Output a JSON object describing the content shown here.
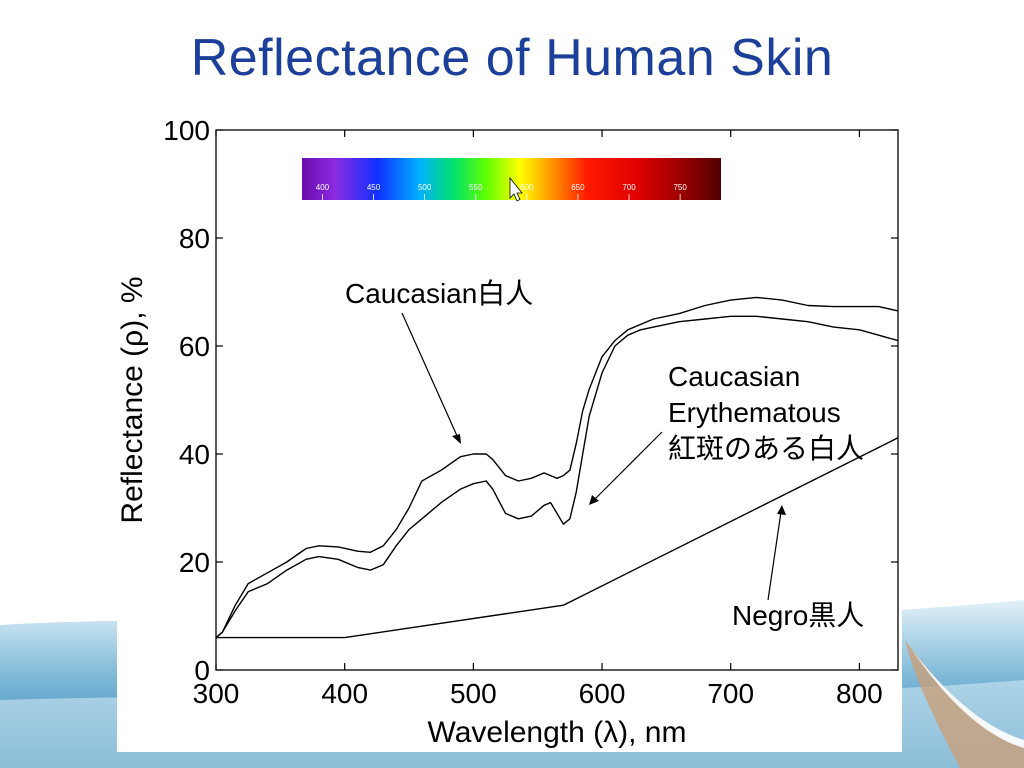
{
  "slide": {
    "title": "Reflectance of Human Skin",
    "colors": {
      "title": "#1c3f9a",
      "wave_dark": "#2a7fb0",
      "wave_light": "#bfe0ef",
      "corner_accent": "#c8a07a"
    }
  },
  "spectrum_bar": {
    "labels": [
      "400",
      "450",
      "500",
      "550",
      "600",
      "650",
      "700",
      "750"
    ],
    "cursor_icon": "mouse-pointer-icon"
  },
  "chart_data": {
    "type": "line",
    "title": "",
    "xlabel": "Wavelength (λ), nm",
    "ylabel": "Reflectance (ρ), %",
    "xlim": [
      300,
      830
    ],
    "ylim": [
      0,
      100
    ],
    "xticks": [
      300,
      400,
      500,
      600,
      700,
      800
    ],
    "yticks": [
      0,
      20,
      40,
      60,
      80,
      100
    ],
    "grid": false,
    "legend": "none",
    "series": [
      {
        "x": [
          300,
          305,
          315,
          325,
          340,
          355,
          370,
          380,
          395,
          410,
          420,
          430,
          440,
          450,
          460,
          475,
          490,
          500,
          510,
          515,
          525,
          535,
          545,
          555,
          560,
          565,
          570,
          575,
          580,
          585,
          590,
          600,
          610,
          620,
          630,
          640,
          660,
          680,
          700,
          720,
          740,
          760,
          780,
          800,
          815,
          830
        ],
        "values": [
          6,
          7,
          12,
          16,
          18,
          20,
          22.5,
          23,
          22.8,
          22,
          21.8,
          23,
          26,
          30,
          35,
          37,
          39.5,
          40,
          40,
          39,
          36,
          35,
          35.5,
          36.5,
          36,
          35.5,
          36,
          37,
          42,
          48,
          52,
          58,
          61,
          63,
          64,
          65,
          66,
          67.5,
          68.5,
          69,
          68.5,
          67.5,
          67.3,
          67.3,
          67.3,
          66.5
        ]
      },
      {
        "x": [
          300,
          305,
          315,
          325,
          340,
          355,
          370,
          380,
          395,
          410,
          420,
          430,
          440,
          450,
          460,
          475,
          490,
          500,
          510,
          515,
          525,
          535,
          545,
          555,
          560,
          565,
          570,
          575,
          580,
          585,
          590,
          600,
          610,
          620,
          630,
          640,
          660,
          680,
          700,
          720,
          740,
          760,
          780,
          800,
          815,
          830
        ],
        "values": [
          6,
          7,
          11,
          14.5,
          16,
          18.5,
          20.5,
          21,
          20.5,
          19,
          18.5,
          19.5,
          23,
          26,
          28,
          31,
          33.5,
          34.5,
          35,
          33.5,
          29,
          28,
          28.5,
          30.5,
          31,
          29,
          27,
          28,
          33,
          40,
          47,
          55,
          60,
          62,
          63,
          63.5,
          64.5,
          65,
          65.5,
          65.5,
          65,
          64.5,
          63.5,
          63,
          62,
          61
        ]
      },
      {
        "x": [
          300,
          400,
          570,
          830
        ],
        "values": [
          6,
          6,
          12,
          43
        ]
      }
    ],
    "annotations": [
      {
        "text": "Caucasian白人"
      },
      {
        "text": "Caucasian"
      },
      {
        "text": "Erythematous"
      },
      {
        "text": "紅斑のある白人"
      },
      {
        "text": "Negro黒人"
      }
    ]
  }
}
